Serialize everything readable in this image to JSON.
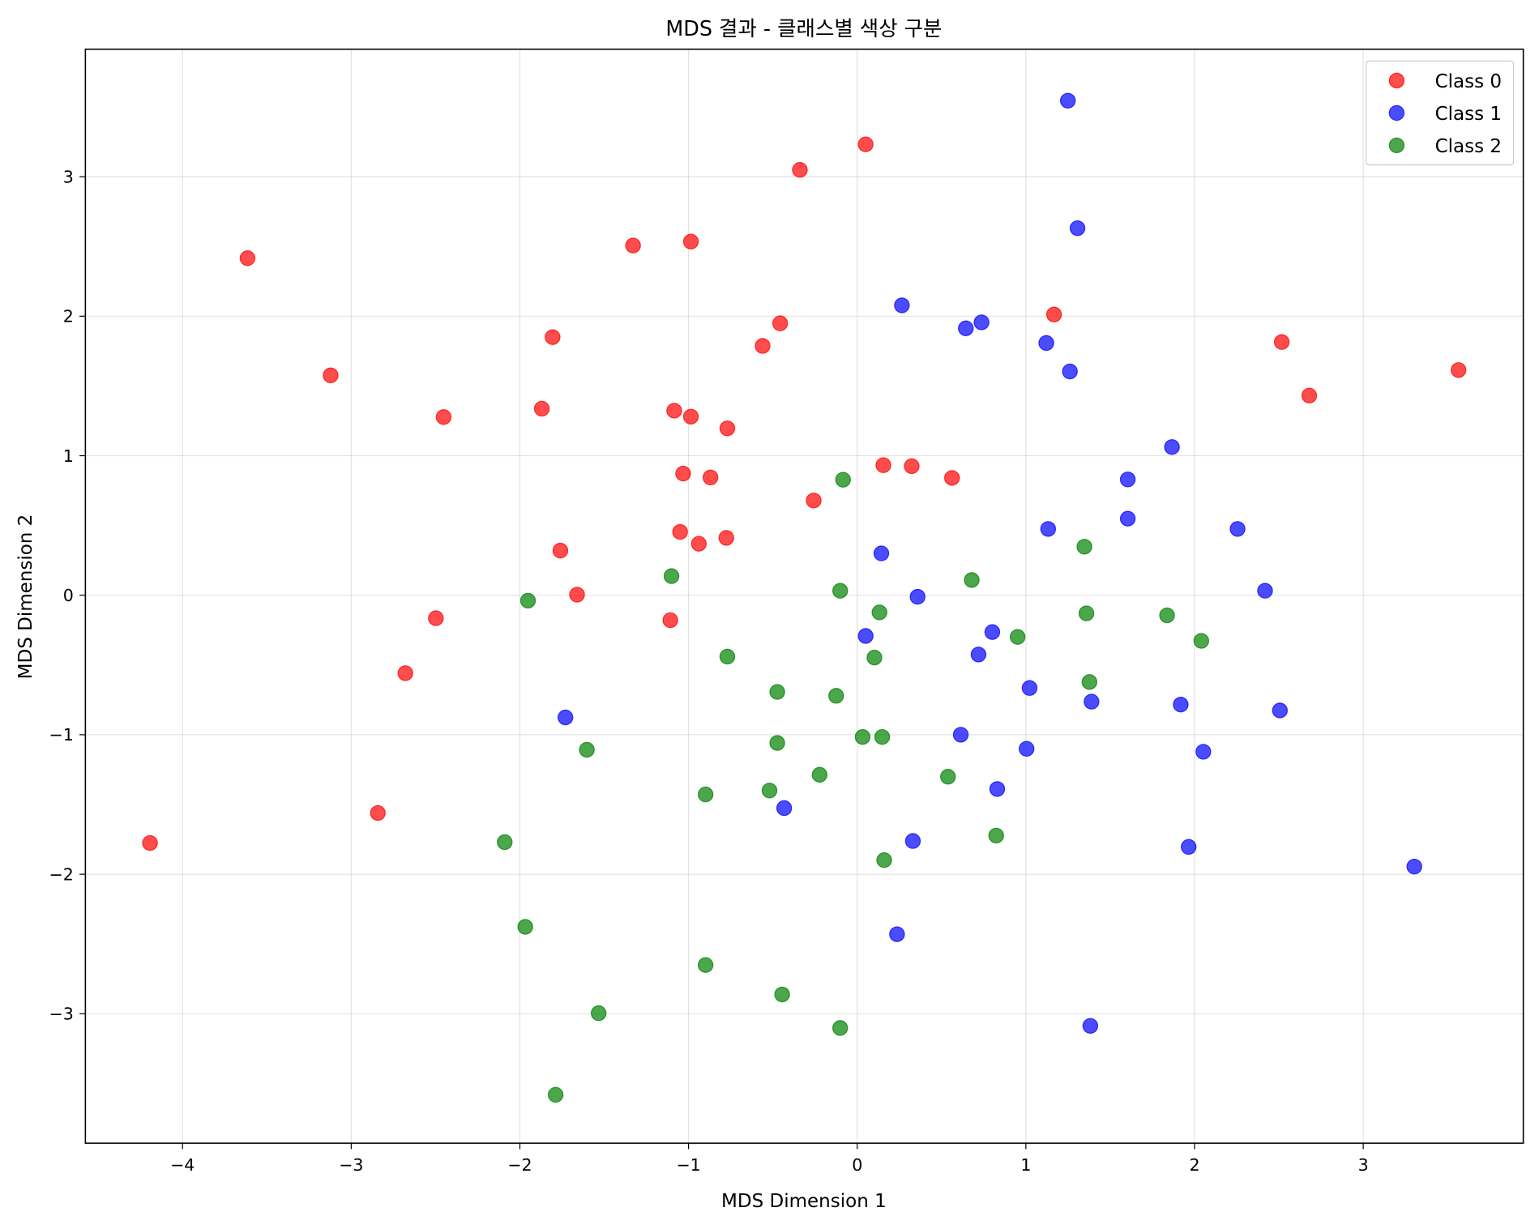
{
  "chart_data": {
    "type": "scatter",
    "title": "MDS 결과 - 클래스별 색상 구분",
    "xlabel": "MDS Dimension 1",
    "ylabel": "MDS Dimension 2",
    "xlim": [
      -4.576,
      3.949
    ],
    "ylim": [
      -3.928,
      3.914
    ],
    "xticks": [
      -4,
      -3,
      -2,
      -1,
      0,
      1,
      2,
      3
    ],
    "yticks": [
      -3,
      -2,
      -1,
      0,
      1,
      2,
      3
    ],
    "xtick_labels": [
      "−4",
      "−3",
      "−2",
      "−1",
      "0",
      "1",
      "2",
      "3"
    ],
    "ytick_labels": [
      "−3",
      "−2",
      "−1",
      "0",
      "1",
      "2",
      "3"
    ],
    "grid": true,
    "legend_position": "top-right",
    "series": [
      {
        "name": "Class 0",
        "color": "#ff0000",
        "points": [
          [
            -3.615,
            2.416
          ],
          [
            -3.122,
            1.576
          ],
          [
            -4.193,
            -1.776
          ],
          [
            -2.842,
            -1.561
          ],
          [
            -2.679,
            -0.559
          ],
          [
            -2.498,
            -0.165
          ],
          [
            -2.452,
            1.277
          ],
          [
            -1.806,
            1.85
          ],
          [
            -1.87,
            1.337
          ],
          [
            -1.76,
            0.32
          ],
          [
            -1.661,
            0.004
          ],
          [
            -1.329,
            2.507
          ],
          [
            -0.986,
            2.535
          ],
          [
            -0.34,
            3.049
          ],
          [
            0.05,
            3.232
          ],
          [
            -0.457,
            1.949
          ],
          [
            -0.561,
            1.787
          ],
          [
            -1.085,
            1.323
          ],
          [
            -0.986,
            1.28
          ],
          [
            -0.77,
            1.196
          ],
          [
            -1.032,
            0.872
          ],
          [
            -0.87,
            0.844
          ],
          [
            -1.05,
            0.454
          ],
          [
            -0.939,
            0.369
          ],
          [
            -0.776,
            0.411
          ],
          [
            -1.108,
            -0.179
          ],
          [
            -0.258,
            0.679
          ],
          [
            0.155,
            0.932
          ],
          [
            0.323,
            0.925
          ],
          [
            0.562,
            0.841
          ],
          [
            1.167,
            2.012
          ],
          [
            2.517,
            1.815
          ],
          [
            2.68,
            1.431
          ],
          [
            3.565,
            1.614
          ]
        ]
      },
      {
        "name": "Class 1",
        "color": "#0000ff",
        "points": [
          [
            1.249,
            3.545
          ],
          [
            0.265,
            2.078
          ],
          [
            1.306,
            2.631
          ],
          [
            0.644,
            1.913
          ],
          [
            0.737,
            1.956
          ],
          [
            1.121,
            1.808
          ],
          [
            1.261,
            1.604
          ],
          [
            1.866,
            1.062
          ],
          [
            1.604,
            0.83
          ],
          [
            1.604,
            0.549
          ],
          [
            1.132,
            0.475
          ],
          [
            2.255,
            0.475
          ],
          [
            2.418,
            0.032
          ],
          [
            0.143,
            0.3
          ],
          [
            0.358,
            -0.011
          ],
          [
            0.05,
            -0.292
          ],
          [
            0.801,
            -0.264
          ],
          [
            0.719,
            -0.425
          ],
          [
            1.022,
            -0.665
          ],
          [
            1.389,
            -0.763
          ],
          [
            1.918,
            -0.784
          ],
          [
            2.506,
            -0.826
          ],
          [
            0.614,
            -1.0
          ],
          [
            1.004,
            -1.101
          ],
          [
            2.052,
            -1.122
          ],
          [
            0.83,
            -1.389
          ],
          [
            0.33,
            -1.762
          ],
          [
            1.965,
            -1.804
          ],
          [
            3.303,
            -1.945
          ],
          [
            0.236,
            -2.43
          ],
          [
            1.382,
            -3.087
          ],
          [
            -0.433,
            -1.526
          ],
          [
            -1.73,
            -0.876
          ]
        ]
      },
      {
        "name": "Class 2",
        "color": "#008000",
        "points": [
          [
            -0.084,
            0.828
          ],
          [
            1.347,
            0.348
          ],
          [
            0.679,
            0.109
          ],
          [
            -1.101,
            0.137
          ],
          [
            -1.952,
            -0.039
          ],
          [
            -0.101,
            0.032
          ],
          [
            0.132,
            -0.123
          ],
          [
            1.359,
            -0.13
          ],
          [
            1.837,
            -0.144
          ],
          [
            0.951,
            -0.299
          ],
          [
            2.04,
            -0.327
          ],
          [
            0.102,
            -0.447
          ],
          [
            -0.77,
            -0.44
          ],
          [
            1.377,
            -0.622
          ],
          [
            -0.474,
            -0.693
          ],
          [
            -0.125,
            -0.721
          ],
          [
            0.032,
            -1.016
          ],
          [
            0.148,
            -1.016
          ],
          [
            -0.474,
            -1.059
          ],
          [
            -1.603,
            -1.108
          ],
          [
            -0.223,
            -1.287
          ],
          [
            -0.52,
            -1.4
          ],
          [
            -0.899,
            -1.428
          ],
          [
            0.538,
            -1.301
          ],
          [
            0.824,
            -1.723
          ],
          [
            0.16,
            -1.899
          ],
          [
            -2.09,
            -1.77
          ],
          [
            -1.968,
            -2.377
          ],
          [
            -0.899,
            -2.651
          ],
          [
            -0.445,
            -2.862
          ],
          [
            -1.533,
            -2.996
          ],
          [
            -0.101,
            -3.102
          ],
          [
            -1.788,
            -3.581
          ]
        ]
      }
    ]
  }
}
